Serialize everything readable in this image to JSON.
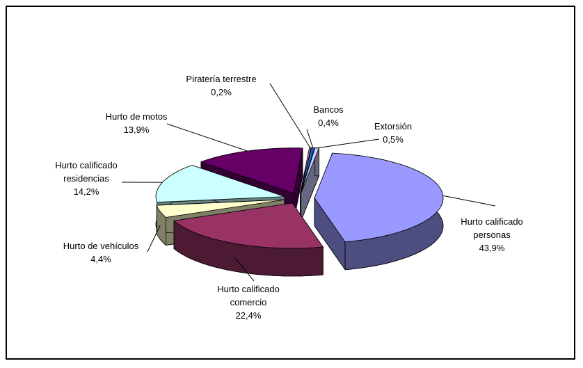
{
  "chart_data": {
    "type": "pie",
    "categories": [
      "Hurto calificado personas",
      "Hurto calificado comercio",
      "Hurto de vehículos",
      "Hurto calificado residencias",
      "Hurto de motos",
      "Piratería terrestre",
      "Bancos",
      "Extorsión"
    ],
    "values": [
      43.9,
      22.4,
      4.4,
      14.2,
      13.9,
      0.2,
      0.4,
      0.5
    ],
    "value_labels": [
      "43,9%",
      "22,4%",
      "4,4%",
      "14,2%",
      "13,9%",
      "0,2%",
      "0,4%",
      "0,5%"
    ],
    "colors": [
      "#9999ff",
      "#993366",
      "#ffffcc",
      "#ccffff",
      "#660066",
      "#ff8080",
      "#0066cc",
      "#ccccff"
    ]
  }
}
